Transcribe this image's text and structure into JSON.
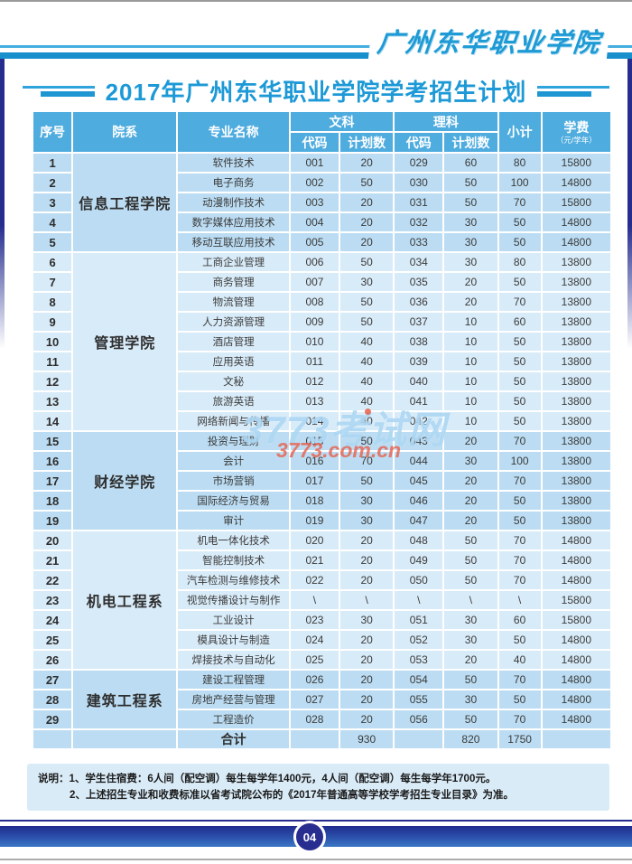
{
  "page": {
    "top_brand": "广州东华职业学院",
    "title": "2017年广州东华职业学院学考招生计划",
    "page_number": "04"
  },
  "table": {
    "headers": {
      "no": "序号",
      "department": "院系",
      "major": "专业名称",
      "arts": "文科",
      "science": "理科",
      "code": "代码",
      "plan": "计划数",
      "subtotal": "小计",
      "tuition": "学费",
      "tuition_unit": "（元/学年）"
    },
    "departments": [
      {
        "name": "信息工程学院",
        "shade": "dark",
        "rows": [
          {
            "no": "1",
            "major": "软件技术",
            "arts_code": "001",
            "arts_plan": "20",
            "sci_code": "029",
            "sci_plan": "60",
            "subtotal": "80",
            "tuition": "15800"
          },
          {
            "no": "2",
            "major": "电子商务",
            "arts_code": "002",
            "arts_plan": "50",
            "sci_code": "030",
            "sci_plan": "50",
            "subtotal": "100",
            "tuition": "14800"
          },
          {
            "no": "3",
            "major": "动漫制作技术",
            "arts_code": "003",
            "arts_plan": "20",
            "sci_code": "031",
            "sci_plan": "50",
            "subtotal": "70",
            "tuition": "15800"
          },
          {
            "no": "4",
            "major": "数字媒体应用技术",
            "arts_code": "004",
            "arts_plan": "20",
            "sci_code": "032",
            "sci_plan": "30",
            "subtotal": "50",
            "tuition": "14800"
          },
          {
            "no": "5",
            "major": "移动互联应用技术",
            "arts_code": "005",
            "arts_plan": "20",
            "sci_code": "033",
            "sci_plan": "30",
            "subtotal": "50",
            "tuition": "14800"
          }
        ]
      },
      {
        "name": "管理学院",
        "shade": "light",
        "rows": [
          {
            "no": "6",
            "major": "工商企业管理",
            "arts_code": "006",
            "arts_plan": "50",
            "sci_code": "034",
            "sci_plan": "30",
            "subtotal": "80",
            "tuition": "13800"
          },
          {
            "no": "7",
            "major": "商务管理",
            "arts_code": "007",
            "arts_plan": "30",
            "sci_code": "035",
            "sci_plan": "20",
            "subtotal": "50",
            "tuition": "13800"
          },
          {
            "no": "8",
            "major": "物流管理",
            "arts_code": "008",
            "arts_plan": "50",
            "sci_code": "036",
            "sci_plan": "20",
            "subtotal": "70",
            "tuition": "13800"
          },
          {
            "no": "9",
            "major": "人力资源管理",
            "arts_code": "009",
            "arts_plan": "50",
            "sci_code": "037",
            "sci_plan": "10",
            "subtotal": "60",
            "tuition": "13800"
          },
          {
            "no": "10",
            "major": "酒店管理",
            "arts_code": "010",
            "arts_plan": "40",
            "sci_code": "038",
            "sci_plan": "10",
            "subtotal": "50",
            "tuition": "13800"
          },
          {
            "no": "11",
            "major": "应用英语",
            "arts_code": "011",
            "arts_plan": "40",
            "sci_code": "039",
            "sci_plan": "10",
            "subtotal": "50",
            "tuition": "13800"
          },
          {
            "no": "12",
            "major": "文秘",
            "arts_code": "012",
            "arts_plan": "40",
            "sci_code": "040",
            "sci_plan": "10",
            "subtotal": "50",
            "tuition": "13800"
          },
          {
            "no": "13",
            "major": "旅游英语",
            "arts_code": "013",
            "arts_plan": "40",
            "sci_code": "041",
            "sci_plan": "10",
            "subtotal": "50",
            "tuition": "13800"
          },
          {
            "no": "14",
            "major": "网络新闻与传播",
            "arts_code": "014",
            "arts_plan": "40",
            "sci_code": "042",
            "sci_plan": "10",
            "subtotal": "50",
            "tuition": "13800"
          }
        ]
      },
      {
        "name": "财经学院",
        "shade": "dark",
        "rows": [
          {
            "no": "15",
            "major": "投资与理财",
            "arts_code": "015",
            "arts_plan": "50",
            "sci_code": "043",
            "sci_plan": "20",
            "subtotal": "70",
            "tuition": "13800"
          },
          {
            "no": "16",
            "major": "会计",
            "arts_code": "016",
            "arts_plan": "70",
            "sci_code": "044",
            "sci_plan": "30",
            "subtotal": "100",
            "tuition": "13800"
          },
          {
            "no": "17",
            "major": "市场营销",
            "arts_code": "017",
            "arts_plan": "50",
            "sci_code": "045",
            "sci_plan": "20",
            "subtotal": "70",
            "tuition": "13800"
          },
          {
            "no": "18",
            "major": "国际经济与贸易",
            "arts_code": "018",
            "arts_plan": "30",
            "sci_code": "046",
            "sci_plan": "20",
            "subtotal": "50",
            "tuition": "13800"
          },
          {
            "no": "19",
            "major": "审计",
            "arts_code": "019",
            "arts_plan": "30",
            "sci_code": "047",
            "sci_plan": "20",
            "subtotal": "50",
            "tuition": "13800"
          }
        ]
      },
      {
        "name": "机电工程系",
        "shade": "light",
        "rows": [
          {
            "no": "20",
            "major": "机电一体化技术",
            "arts_code": "020",
            "arts_plan": "20",
            "sci_code": "048",
            "sci_plan": "50",
            "subtotal": "70",
            "tuition": "14800"
          },
          {
            "no": "21",
            "major": "智能控制技术",
            "arts_code": "021",
            "arts_plan": "20",
            "sci_code": "049",
            "sci_plan": "50",
            "subtotal": "70",
            "tuition": "14800"
          },
          {
            "no": "22",
            "major": "汽车检测与维修技术",
            "arts_code": "022",
            "arts_plan": "20",
            "sci_code": "050",
            "sci_plan": "50",
            "subtotal": "70",
            "tuition": "14800"
          },
          {
            "no": "23",
            "major": "视觉传播设计与制作",
            "arts_code": "\\",
            "arts_plan": "\\",
            "sci_code": "\\",
            "sci_plan": "\\",
            "subtotal": "\\",
            "tuition": "15800"
          },
          {
            "no": "24",
            "major": "工业设计",
            "arts_code": "023",
            "arts_plan": "30",
            "sci_code": "051",
            "sci_plan": "30",
            "subtotal": "60",
            "tuition": "15800"
          },
          {
            "no": "25",
            "major": "模具设计与制造",
            "arts_code": "024",
            "arts_plan": "20",
            "sci_code": "052",
            "sci_plan": "30",
            "subtotal": "50",
            "tuition": "14800"
          },
          {
            "no": "26",
            "major": "焊接技术与自动化",
            "arts_code": "025",
            "arts_plan": "20",
            "sci_code": "053",
            "sci_plan": "20",
            "subtotal": "40",
            "tuition": "14800"
          }
        ]
      },
      {
        "name": "建筑工程系",
        "shade": "dark",
        "rows": [
          {
            "no": "27",
            "major": "建设工程管理",
            "arts_code": "026",
            "arts_plan": "20",
            "sci_code": "054",
            "sci_plan": "50",
            "subtotal": "70",
            "tuition": "14800"
          },
          {
            "no": "28",
            "major": "房地产经营与管理",
            "arts_code": "027",
            "arts_plan": "20",
            "sci_code": "055",
            "sci_plan": "30",
            "subtotal": "50",
            "tuition": "14800"
          },
          {
            "no": "29",
            "major": "工程造价",
            "arts_code": "028",
            "arts_plan": "20",
            "sci_code": "056",
            "sci_plan": "50",
            "subtotal": "70",
            "tuition": "14800"
          }
        ]
      }
    ],
    "total": {
      "label": "合计",
      "arts_plan": "930",
      "science_plan": "820",
      "subtotal": "1750"
    }
  },
  "notes": {
    "line1": "说明：1、学生住宿费：6人间（配空调）每生每学年1400元，4人间（配空调）每生每学年1700元。",
    "line2": "2、上述招生专业和收费标准以省考试院公布的《2017年普通高等学校学考招生专业目录》为准。"
  },
  "watermark": {
    "text": "3773考试网",
    "url": "3773.com.cn"
  },
  "colors": {
    "accent_blue": "#1e9ad5",
    "header_blue": "#4facdf",
    "cell_dark": "#bbdcf2",
    "cell_light": "#d8ebf8",
    "navy": "#232b8e"
  }
}
